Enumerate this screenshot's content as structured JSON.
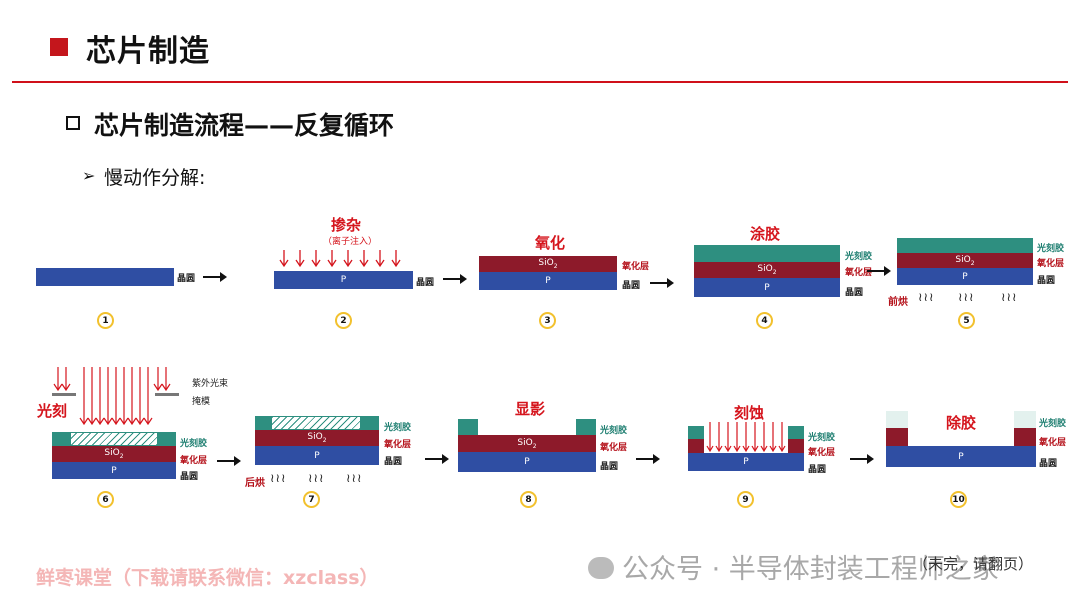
{
  "header": {
    "title": "芯片制造"
  },
  "section": {
    "title": "芯片制造流程——反复循环"
  },
  "subtitle": "慢动作分解:",
  "layers": {
    "wafer": "晶圆",
    "oxide": "氧化层",
    "resist": "光刻胶",
    "p": "P",
    "sio2": "SiO",
    "sio2_sub": "2"
  },
  "steps": {
    "s1": {
      "num": "1"
    },
    "s2": {
      "num": "2",
      "title": "掺杂",
      "sub": "（离子注入）"
    },
    "s3": {
      "num": "3",
      "title": "氧化"
    },
    "s4": {
      "num": "4",
      "title": "涂胶"
    },
    "s5": {
      "num": "5",
      "bake": "前烘"
    },
    "s6": {
      "num": "6",
      "title": "光刻",
      "uv": "紫外光束",
      "mask": "掩模"
    },
    "s7": {
      "num": "7",
      "bake": "后烘"
    },
    "s8": {
      "num": "8",
      "title": "显影"
    },
    "s9": {
      "num": "9",
      "title": "刻蚀"
    },
    "s10": {
      "num": "10",
      "title": "除胶"
    }
  },
  "waves_symbol": "≀≀≀",
  "footer": {
    "watermark": "鲜枣课堂（下载请联系微信：xzclass）",
    "note": "（未完，请翻页）",
    "wechat": "公众号 · 半导体封装工程师之家"
  },
  "colors": {
    "accent_red": "#c4161c",
    "wafer_blue": "#2f4ea3",
    "oxide_red": "#8d1a2a",
    "resist_green": "#2e8f80",
    "step_badge": "#f2c12e"
  }
}
